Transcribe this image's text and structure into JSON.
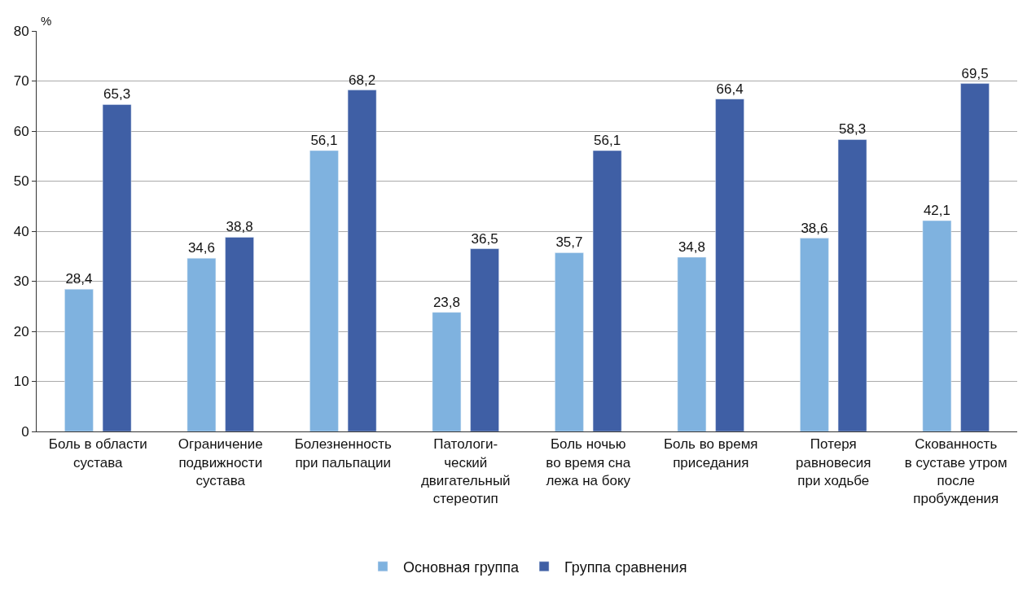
{
  "chart_data": {
    "type": "bar",
    "ylabel": "%",
    "categories": [
      "Боль в области\nсустава",
      "Ограничение\nподвижности\nсустава",
      "Болезненность\nпри пальпации",
      "Патологи-\nческий\nдвигательный\nстереотип",
      "Боль ночью\nво время сна\nлежа на боку",
      "Боль во время\nприседания",
      "Потеря\nравновесия\nпри ходьбе",
      "Скованность\nв суставе утром\nпосле\nпробуждения"
    ],
    "series": [
      {
        "name": "Основная группа",
        "color": "#7fb2df",
        "values": [
          28.4,
          34.6,
          56.1,
          23.8,
          35.7,
          34.8,
          38.6,
          42.1
        ],
        "value_labels": [
          "28,4",
          "34,6",
          "56,1",
          "23,8",
          "35,7",
          "34,8",
          "38,6",
          "42,1"
        ]
      },
      {
        "name": "Группа сравнения",
        "color": "#3f5fa5",
        "values": [
          65.3,
          38.8,
          68.2,
          36.5,
          56.1,
          66.4,
          58.3,
          69.5
        ],
        "value_labels": [
          "65,3",
          "38,8",
          "68,2",
          "36,5",
          "56,1",
          "66,4",
          "58,3",
          "69,5"
        ]
      }
    ],
    "ylim": [
      0,
      80
    ],
    "yticks": [
      0,
      10,
      20,
      30,
      40,
      50,
      60,
      70,
      80
    ],
    "grid": "y",
    "legend": "bottom"
  }
}
